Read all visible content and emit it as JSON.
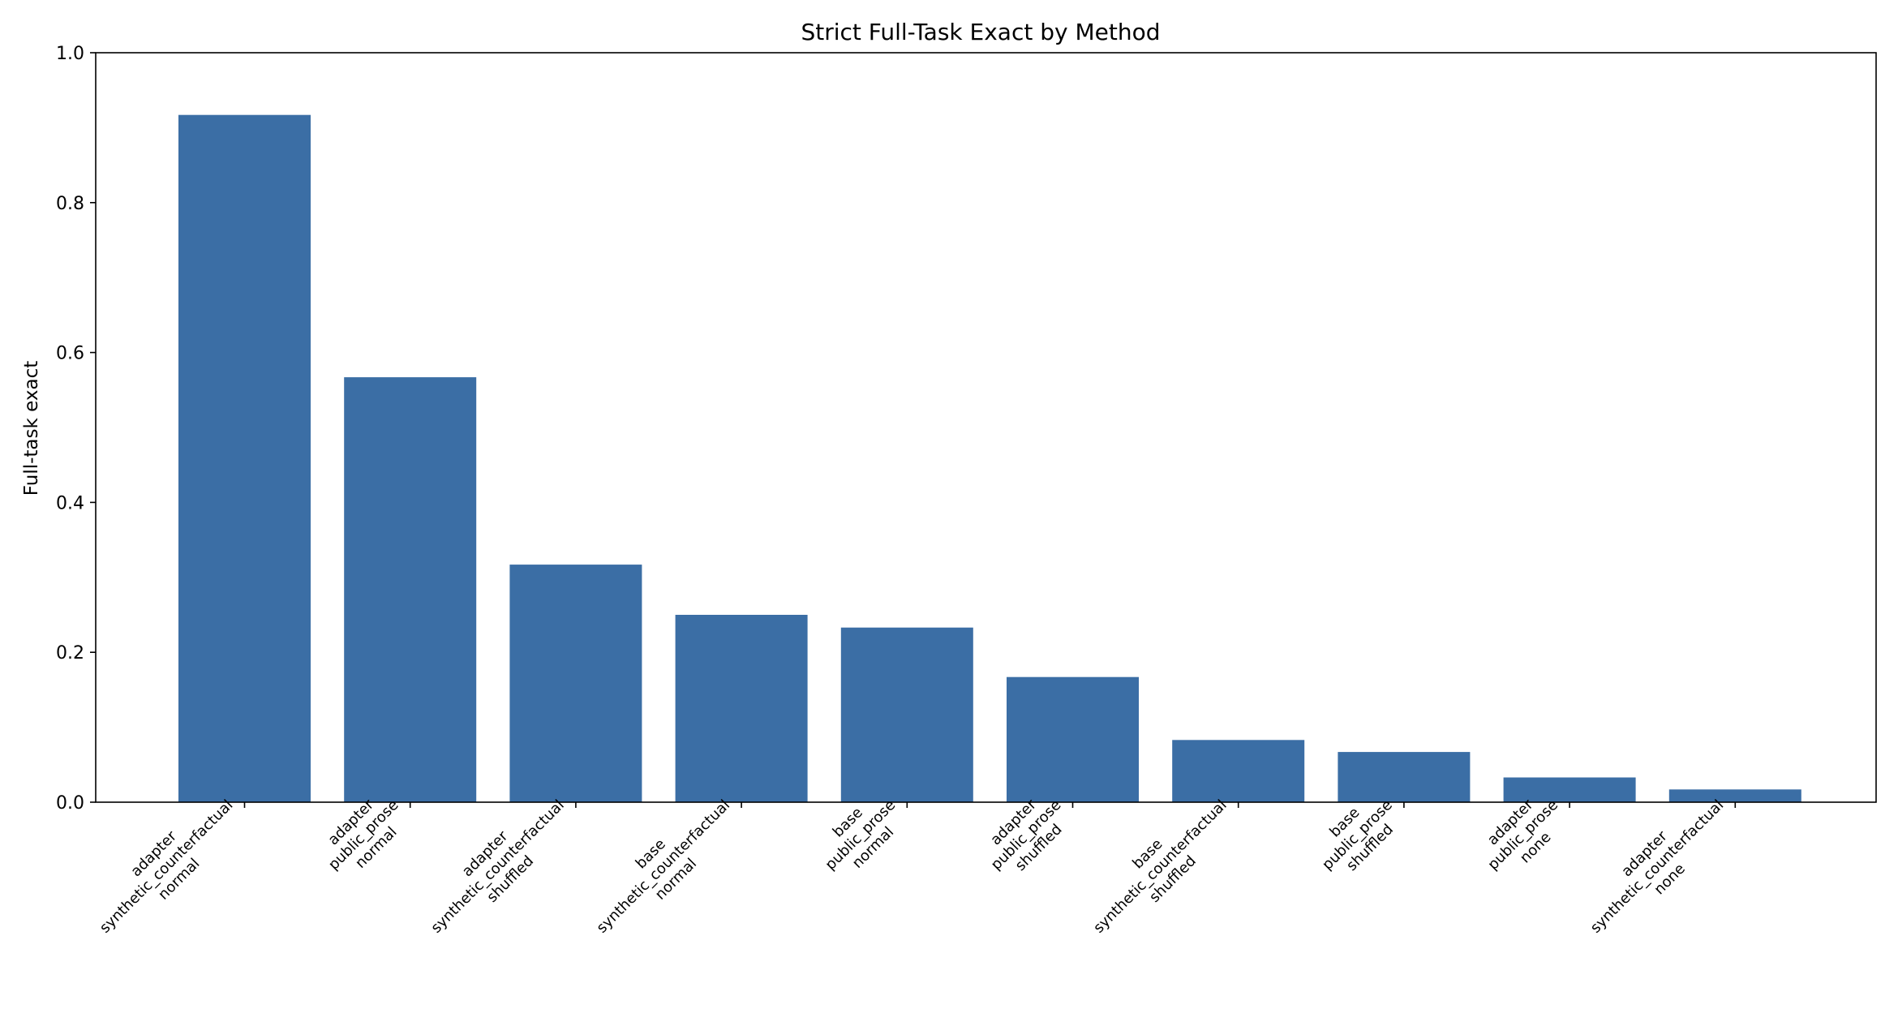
{
  "chart_data": {
    "type": "bar",
    "title": "Strict Full-Task Exact by Method",
    "xlabel": "",
    "ylabel": "Full-task exact",
    "ylim": [
      0,
      1.0
    ],
    "yticks": [
      "0.0",
      "0.2",
      "0.4",
      "0.6",
      "0.8",
      "1.0"
    ],
    "grid": false,
    "bar_color": "#3b6ea5",
    "categories": [
      [
        "adapter",
        "synthetic_counterfactual",
        "normal"
      ],
      [
        "adapter",
        "public_prose",
        "normal"
      ],
      [
        "adapter",
        "synthetic_counterfactual",
        "shuffled"
      ],
      [
        "base",
        "synthetic_counterfactual",
        "normal"
      ],
      [
        "base",
        "public_prose",
        "normal"
      ],
      [
        "adapter",
        "public_prose",
        "shuffled"
      ],
      [
        "base",
        "synthetic_counterfactual",
        "shuffled"
      ],
      [
        "base",
        "public_prose",
        "shuffled"
      ],
      [
        "adapter",
        "public_prose",
        "none"
      ],
      [
        "adapter",
        "synthetic_counterfactual",
        "none"
      ]
    ],
    "values": [
      0.917,
      0.567,
      0.317,
      0.25,
      0.233,
      0.167,
      0.083,
      0.067,
      0.033,
      0.017
    ]
  }
}
